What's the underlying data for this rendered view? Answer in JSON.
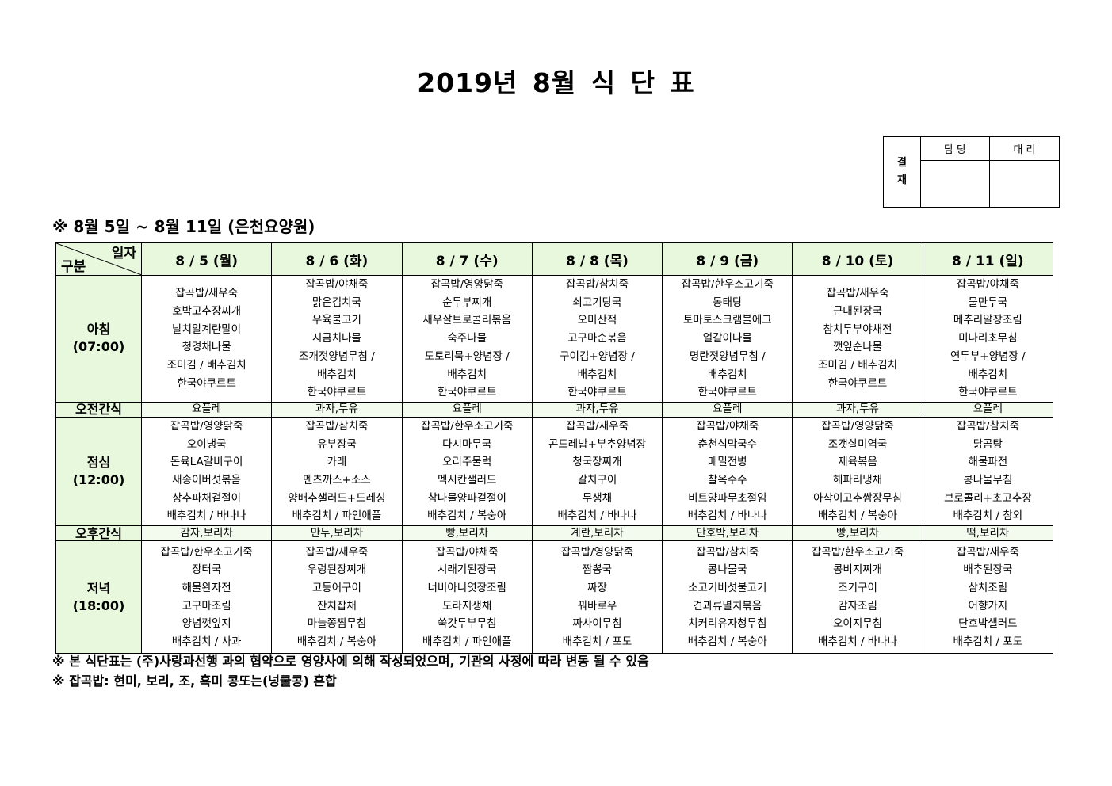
{
  "title": "2019년 8월 식 단 표",
  "subtitle": "※ 8월 5일 ~ 8월 11일 (은천요양원)",
  "approval": {
    "label": "결\n재",
    "label_top": "결",
    "label_bottom": "재",
    "col1": "담 당",
    "col2": "대 리"
  },
  "header": {
    "corner_top": "일자",
    "corner_bottom": "구분",
    "days": [
      "8 / 5 (월)",
      "8 / 6 (화)",
      "8 / 7 (수)",
      "8 / 8 (목)",
      "8 / 9 (금)",
      "8 / 10 (토)",
      "8 / 11 (일)"
    ]
  },
  "rows": [
    {
      "label": "아침",
      "time": "(07:00)",
      "type": "meal",
      "cells": [
        [
          "잡곡밥/새우죽",
          "호박고추장찌개",
          "날치알계란말이",
          "청경채나물",
          "조미김 / 배추김치",
          "한국야쿠르트"
        ],
        [
          "잡곡밥/야채죽",
          "맑은김치국",
          "우육불고기",
          "시금치나물",
          "조개젓양념무침 /",
          "배추김치",
          "한국야쿠르트"
        ],
        [
          "잡곡밥/영양닭죽",
          "순두부찌개",
          "새우살브로콜리볶음",
          "숙주나물",
          "도토리묵+양념장 /",
          "배추김치",
          "한국야쿠르트"
        ],
        [
          "잡곡밥/참치죽",
          "쇠고기탕국",
          "오미산적",
          "고구마순볶음",
          "구이김+양념장 /",
          "배추김치",
          "한국야쿠르트"
        ],
        [
          "잡곡밥/한우소고기죽",
          "동태탕",
          "토마토스크램블에그",
          "얼갈이나물",
          "명란젓양념무침 /",
          "배추김치",
          "한국야쿠르트"
        ],
        [
          "잡곡밥/새우죽",
          "근대된장국",
          "참치두부야채전",
          "깻잎순나물",
          "조미김 / 배추김치",
          "한국야쿠르트"
        ],
        [
          "잡곡밥/야채죽",
          "물만두국",
          "메추리알장조림",
          "미나리초무침",
          "연두부+양념장 /",
          "배추김치",
          "한국야쿠르트"
        ]
      ]
    },
    {
      "label": "오전간식",
      "type": "snack",
      "cells": [
        "요플레",
        "과자,두유",
        "요플레",
        "과자,두유",
        "요플레",
        "과자,두유",
        "요플레"
      ]
    },
    {
      "label": "점심",
      "time": "(12:00)",
      "type": "meal",
      "cells": [
        [
          "잡곡밥/영양닭죽",
          "오이냉국",
          "돈육LA갈비구이",
          "새송이버섯볶음",
          "상추파채겉절이",
          "배추김치 / 바나나"
        ],
        [
          "잡곡밥/참치죽",
          "유부장국",
          "카레",
          "멘츠까스+소스",
          "양배추샐러드+드레싱",
          "배추김치 / 파인애플"
        ],
        [
          "잡곡밥/한우소고기죽",
          "다시마무국",
          "오리주물럭",
          "멕시칸샐러드",
          "참나물양파겉절이",
          "배추김치 / 복숭아"
        ],
        [
          "잡곡밥/새우죽",
          "곤드레밥+부추양념장",
          "청국장찌개",
          "갈치구이",
          "무생채",
          "배추김치 / 바나나"
        ],
        [
          "잡곡밥/야채죽",
          "춘천식막국수",
          "메밀전병",
          "찰옥수수",
          "비트양파무초절임",
          "배추김치 / 바나나"
        ],
        [
          "잡곡밥/영양닭죽",
          "조갯살미역국",
          "제육볶음",
          "해파리냉채",
          "아삭이고추쌈장무침",
          "배추김치 / 복숭아"
        ],
        [
          "잡곡밥/참치죽",
          "닭곰탕",
          "해물파전",
          "콩나물무침",
          "브로콜리+초고추장",
          "배추김치 / 참외"
        ]
      ]
    },
    {
      "label": "오후간식",
      "type": "snack",
      "cells": [
        "감자,보리차",
        "만두,보리차",
        "빵,보리차",
        "계란,보리차",
        "단호박,보리차",
        "빵,보리차",
        "떡,보리차"
      ]
    },
    {
      "label": "저녁",
      "time": "(18:00)",
      "type": "meal",
      "cells": [
        [
          "잡곡밥/한우소고기죽",
          "장터국",
          "해물완자전",
          "고구마조림",
          "양념깻잎지",
          "배추김치 / 사과"
        ],
        [
          "잡곡밥/새우죽",
          "우렁된장찌개",
          "고등어구이",
          "잔치잡채",
          "마늘쫑찜무침",
          "배추김치 / 복숭아"
        ],
        [
          "잡곡밥/야채죽",
          "시래기된장국",
          "너비아니엿장조림",
          "도라지생채",
          "쑥갓두부무침",
          "배추김치 / 파인애플"
        ],
        [
          "잡곡밥/영양닭죽",
          "짬뽕국",
          "짜장",
          "꿔바로우",
          "짜사이무침",
          "배추김치 / 포도"
        ],
        [
          "잡곡밥/참치죽",
          "콩나물국",
          "소고기버섯불고기",
          "견과류멸치볶음",
          "치커리유자청무침",
          "배추김치 / 복숭아"
        ],
        [
          "잡곡밥/한우소고기죽",
          "콩비지찌개",
          "조기구이",
          "감자조림",
          "오이지무침",
          "배추김치 / 바나나"
        ],
        [
          "잡곡밥/새우죽",
          "배추된장국",
          "삼치조림",
          "어향가지",
          "단호박샐러드",
          "배추김치 / 포도"
        ]
      ]
    }
  ],
  "notes": [
    "※ 본 식단표는 (주)사랑과선행 과의 협약으로 영양사에 의해 작성되었으며, 기관의 사정에 따라 변동 될 수 있음",
    "※ 잡곡밥: 현미, 보리, 조, 흑미 콩또는(넝쿨콩) 혼합"
  ],
  "colors": {
    "header_bg": "#e7f8dc",
    "snack_bg": "#f3fbee"
  }
}
